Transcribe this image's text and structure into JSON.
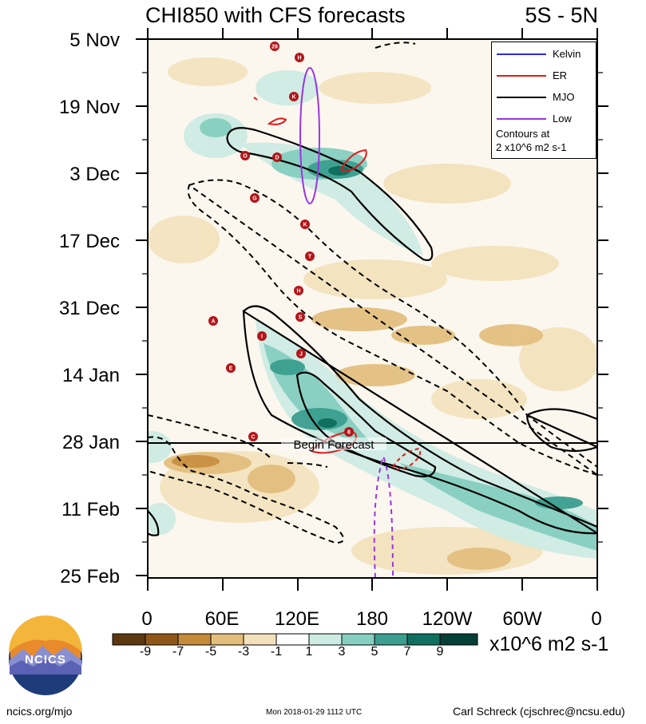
{
  "chart_data": {
    "type": "heatmap",
    "title": "CHI850 with CFS forecasts",
    "region_label": "5S - 5N",
    "y_tick_labels": [
      "5 Nov",
      "19 Nov",
      "3 Dec",
      "17 Dec",
      "31 Dec",
      "14 Jan",
      "28 Jan",
      "11 Feb",
      "25 Feb"
    ],
    "x_tick_labels": [
      "0",
      "60E",
      "120E",
      "180",
      "120W",
      "60W",
      "0"
    ],
    "x_range_deg": [
      0,
      360
    ],
    "colorbar": {
      "tick_labels": [
        "-9",
        "-7",
        "-5",
        "-3",
        "-1",
        "1",
        "3",
        "5",
        "7",
        "9"
      ],
      "colors": [
        "#5c3811",
        "#8e5719",
        "#c58a3a",
        "#e2bd7b",
        "#f3e1bb",
        "#ffffff",
        "#cdebe3",
        "#86cfc0",
        "#3b9e8f",
        "#10705f",
        "#063f35"
      ],
      "units": "x10^6 m2 s-1"
    },
    "forecast_label": "Begin Forecast",
    "legend": {
      "entries": [
        {
          "name": "Kelvin",
          "color": "#2b2bd9"
        },
        {
          "name": "ER",
          "color": "#e01b1b"
        },
        {
          "name": "MJO",
          "color": "#000000"
        },
        {
          "name": "Low",
          "color": "#9b35e0"
        }
      ],
      "note_line1": "Contours at",
      "note_line2": "2 x10^6 m2 s-1"
    },
    "storm_markers": [
      "29",
      "H",
      "K",
      "O",
      "D",
      "G",
      "K",
      "T",
      "H",
      "S",
      "A",
      "I",
      "J",
      "E",
      "C",
      "8"
    ]
  },
  "footer": {
    "org": "NCICS",
    "url": "ncics.org/mjo",
    "timestamp": "Mon 2018-01-29 1112 UTC",
    "author": "Carl Schreck (cjschrec@ncsu.edu)"
  }
}
